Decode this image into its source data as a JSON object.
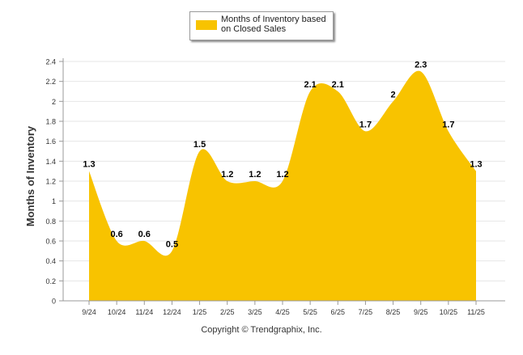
{
  "chart_data": {
    "type": "area",
    "title": "",
    "xlabel": "",
    "ylabel": "Months of Inventory",
    "ylim": [
      0,
      2.4
    ],
    "yticks": [
      "0",
      "0.2",
      "0.4",
      "0.6",
      "0.8",
      "1",
      "1.2",
      "1.4",
      "1.6",
      "1.8",
      "2",
      "2.2",
      "2.4"
    ],
    "grid": true,
    "legend_position": "top-center",
    "categories": [
      "9/24",
      "10/24",
      "11/24",
      "12/24",
      "1/25",
      "2/25",
      "3/25",
      "4/25",
      "5/25",
      "6/25",
      "7/25",
      "8/25",
      "9/25",
      "10/25",
      "11/25"
    ],
    "series": [
      {
        "name": "Months of Inventory based on Closed Sales",
        "color": "#F8C300",
        "values": [
          1.3,
          0.6,
          0.6,
          0.5,
          1.5,
          1.2,
          1.2,
          1.2,
          2.1,
          2.1,
          1.7,
          2,
          2.3,
          1.7,
          1.3
        ],
        "labels": [
          "1.3",
          "0.6",
          "0.6",
          "0.5",
          "1.5",
          "1.2",
          "1.2",
          "1.2",
          "2.1",
          "2.1",
          "1.7",
          "2",
          "2.3",
          "1.7",
          "1.3"
        ]
      }
    ]
  },
  "legend": {
    "label": "Months of Inventory based on Closed Sales"
  },
  "footer": {
    "copyright": "Copyright © Trendgraphix, Inc."
  }
}
